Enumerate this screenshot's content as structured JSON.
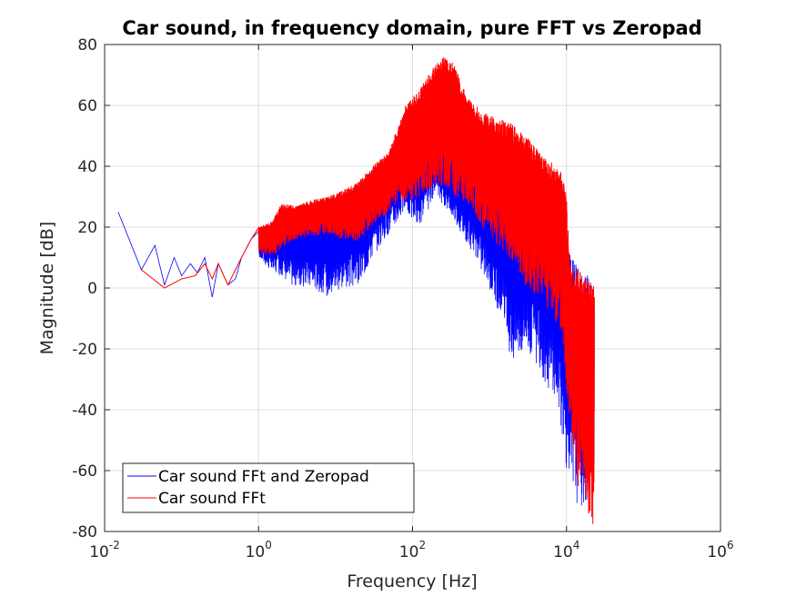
{
  "chart_data": {
    "type": "line",
    "title": "Car sound, in frequency domain, pure FFT vs Zeropad",
    "xlabel": "Frequency [Hz]",
    "ylabel": "Magnitude [dB]",
    "xscale": "log",
    "xlim": [
      0.01,
      1000000
    ],
    "ylim": [
      -80,
      80
    ],
    "x_tick_labels": [
      {
        "value": 0.01,
        "base": "10",
        "exp": "-2"
      },
      {
        "value": 1,
        "base": "10",
        "exp": "0"
      },
      {
        "value": 100,
        "base": "10",
        "exp": "2"
      },
      {
        "value": 10000,
        "base": "10",
        "exp": "4"
      },
      {
        "value": 1000000,
        "base": "10",
        "exp": "6"
      }
    ],
    "y_ticks": [
      -80,
      -60,
      -40,
      -20,
      0,
      20,
      40,
      60,
      80
    ],
    "y_tick_labels": [
      "-80",
      "-60",
      "-40",
      "-20",
      "0",
      "20",
      "40",
      "60",
      "80"
    ],
    "grid": true,
    "legend_position": "bottom-left",
    "series": [
      {
        "name": "Car sound FFt and Zeropad",
        "color": "#0000ff",
        "x": [
          0.015,
          0.03,
          0.045,
          0.06,
          0.08,
          0.1,
          0.13,
          0.16,
          0.2,
          0.25,
          0.3,
          0.4,
          0.5,
          0.6,
          0.8,
          1,
          1.5,
          2,
          3,
          5,
          8,
          12,
          20,
          30,
          50,
          80,
          120,
          200,
          300,
          500,
          800,
          1200,
          2000,
          3000,
          5000,
          8000,
          10000,
          12000,
          15000,
          20000,
          23000
        ],
        "upper": [
          25,
          6,
          14,
          3,
          10,
          7,
          8,
          5,
          10,
          5,
          8,
          9,
          3,
          14,
          16,
          20,
          20,
          25,
          26,
          27,
          29,
          31,
          34,
          39,
          42,
          48,
          47,
          49,
          44,
          41,
          40,
          38,
          36,
          33,
          30,
          25,
          18,
          10,
          6,
          4,
          0
        ],
        "lower": [
          25,
          6,
          2,
          1,
          2,
          4,
          5,
          5,
          8,
          -3,
          0,
          1,
          -10,
          10,
          8,
          10,
          5,
          4,
          0,
          0,
          -3,
          0,
          0,
          10,
          18,
          25,
          20,
          30,
          25,
          15,
          5,
          -5,
          -25,
          -20,
          -30,
          -40,
          -60,
          -70,
          -72,
          -70,
          -60
        ]
      },
      {
        "name": "Car sound FFt",
        "color": "#ff0000",
        "x": [
          0.03,
          0.06,
          0.1,
          0.15,
          0.2,
          0.25,
          0.3,
          0.4,
          0.5,
          0.6,
          0.8,
          1,
          1.5,
          2,
          3,
          5,
          8,
          12,
          20,
          30,
          50,
          80,
          120,
          180,
          250,
          350,
          500,
          800,
          1200,
          2000,
          3000,
          5000,
          7000,
          9000,
          10000,
          11000,
          12000,
          14000,
          16000,
          18000,
          20000,
          22000,
          23000
        ],
        "upper": [
          6,
          0,
          3,
          5,
          8,
          9,
          8,
          10,
          6,
          14,
          16,
          20,
          22,
          28,
          27,
          29,
          30,
          32,
          35,
          40,
          45,
          60,
          65,
          72,
          76,
          74,
          63,
          58,
          56,
          54,
          50,
          43,
          41,
          38,
          30,
          10,
          7,
          6,
          5,
          4,
          3,
          2,
          0
        ],
        "lower": [
          6,
          0,
          2,
          4,
          5,
          3,
          2,
          1,
          -13,
          10,
          10,
          12,
          10,
          13,
          16,
          17,
          18,
          16,
          15,
          20,
          25,
          28,
          30,
          32,
          33,
          30,
          28,
          20,
          15,
          8,
          0,
          -5,
          -10,
          -20,
          -35,
          -45,
          -55,
          -65,
          -68,
          -72,
          -75,
          -78,
          -60
        ]
      }
    ]
  }
}
